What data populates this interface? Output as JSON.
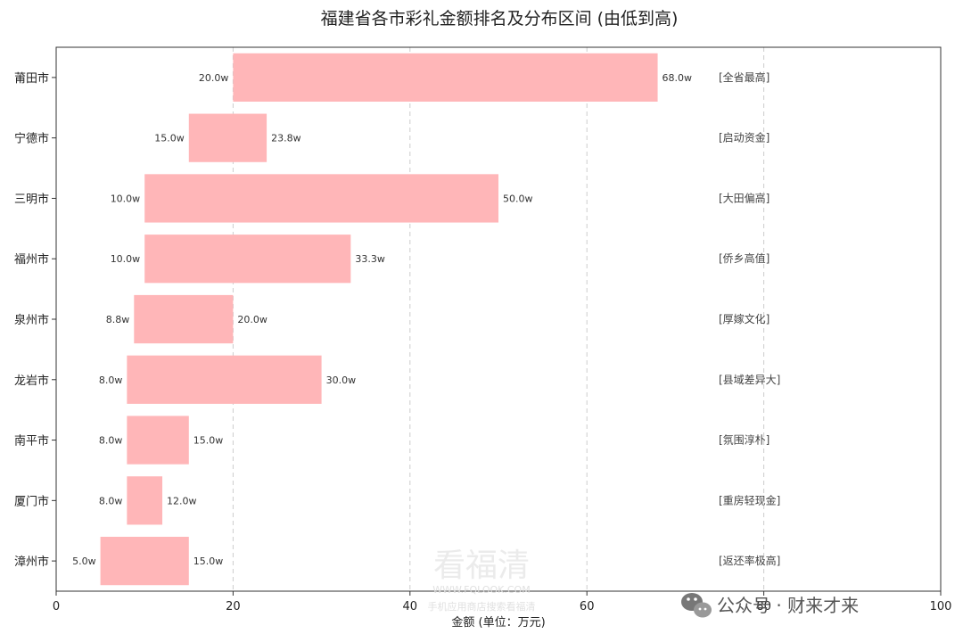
{
  "chart_data": {
    "type": "bar",
    "orientation": "horizontal",
    "title": "福建省各市彩礼金额排名及分布区间 (由低到高)",
    "xlabel": "金额 (单位：万元)",
    "ylabel": "",
    "xlim": [
      0,
      100
    ],
    "xticks": [
      0,
      20,
      40,
      60,
      80,
      100
    ],
    "grid": "x-dashed",
    "bar_color": "#FFB6B8",
    "categories": [
      "莆田市",
      "宁德市",
      "三明市",
      "福州市",
      "泉州市",
      "龙岩市",
      "南平市",
      "厦门市",
      "漳州市"
    ],
    "low": [
      20.0,
      15.0,
      10.0,
      10.0,
      8.8,
      8.0,
      8.0,
      8.0,
      5.0
    ],
    "high": [
      68.0,
      23.8,
      50.0,
      33.3,
      20.0,
      30.0,
      15.0,
      12.0,
      15.0
    ],
    "low_labels": [
      "20.0w",
      "15.0w",
      "10.0w",
      "10.0w",
      "8.8w",
      "8.0w",
      "8.0w",
      "8.0w",
      "5.0w"
    ],
    "high_labels": [
      "68.0w",
      "23.8w",
      "50.0w",
      "33.3w",
      "20.0w",
      "30.0w",
      "15.0w",
      "12.0w",
      "15.0w"
    ],
    "annotations": [
      "[全省最高]",
      "[启动资金]",
      "[大田偏高]",
      "[侨乡高值]",
      "[厚嫁文化]",
      "[县域差异大]",
      "[氛围淳朴]",
      "[重房轻现金]",
      "[返还率极高]"
    ]
  },
  "watermark": {
    "title": "看福清",
    "url": "WWW.FQLOOK.COM",
    "line": "手机应用商店搜索看福清"
  },
  "badge": {
    "text": "公众号 · 财来才来",
    "icon": "wechat-icon"
  }
}
